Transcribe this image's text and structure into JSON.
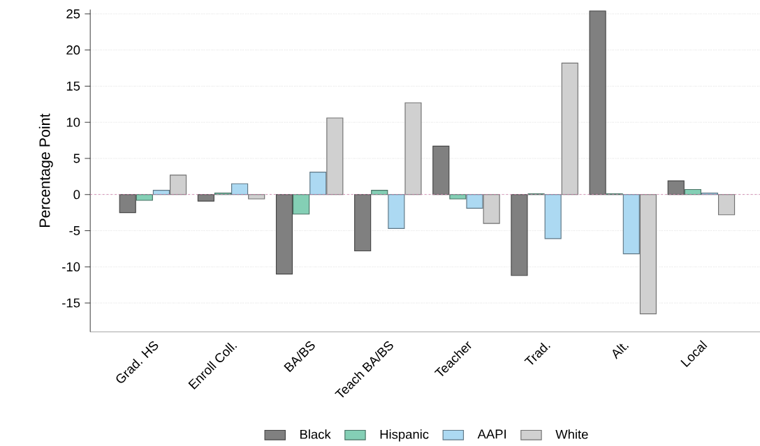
{
  "chart_data": {
    "type": "bar",
    "ylabel": "Percentage Point",
    "categories": [
      "Grad. HS",
      "Enroll Coll.",
      "BA/BS",
      "Teach BA/BS",
      "Teacher",
      "Trad.",
      "Alt.",
      "Local"
    ],
    "series": [
      {
        "name": "Black",
        "color": "#808080",
        "values": [
          -2.5,
          -0.9,
          -11.0,
          -7.8,
          6.7,
          -11.2,
          25.4,
          1.9
        ]
      },
      {
        "name": "Hispanic",
        "color": "#84cfb5",
        "values": [
          -0.8,
          0.2,
          -2.7,
          0.6,
          -0.6,
          0.1,
          0.1,
          0.7
        ]
      },
      {
        "name": "AAPI",
        "color": "#acd9f2",
        "values": [
          0.6,
          1.5,
          3.1,
          -4.7,
          -1.9,
          -6.1,
          -8.2,
          0.2
        ]
      },
      {
        "name": "White",
        "color": "#d0d0d0",
        "values": [
          2.7,
          -0.6,
          10.6,
          12.7,
          -4.0,
          18.2,
          -16.5,
          -2.8
        ]
      }
    ],
    "ylim": [
      -19,
      25.6
    ],
    "yticks": [
      -15,
      -10,
      -5,
      0,
      5,
      10,
      15,
      20,
      25
    ],
    "grid": "y",
    "legend": "bottom",
    "ref_lines": [
      {
        "axis": "y",
        "value": 0,
        "color": "#cc79a7",
        "line_style": "dashed"
      }
    ]
  }
}
